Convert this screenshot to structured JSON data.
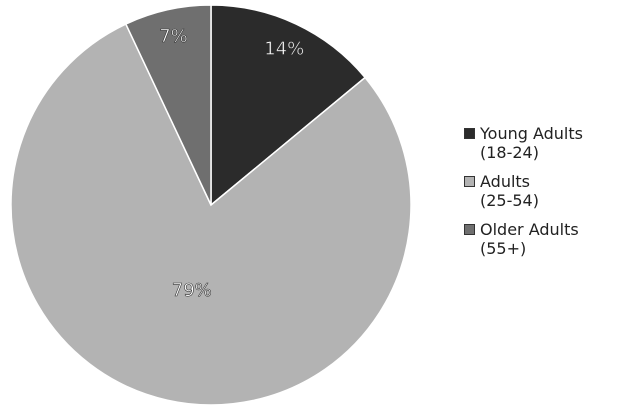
{
  "chart_data": {
    "type": "pie",
    "categories": [
      "Young Adults\n(18-24)",
      "Adults\n(25-54)",
      "Older Adults\n(55+)"
    ],
    "values": [
      14,
      79,
      7
    ],
    "value_labels": [
      "14%",
      "79%",
      "7%"
    ],
    "colors": [
      "#2b2b2b",
      "#b3b3b3",
      "#6f6f6f"
    ],
    "legend": "right"
  }
}
